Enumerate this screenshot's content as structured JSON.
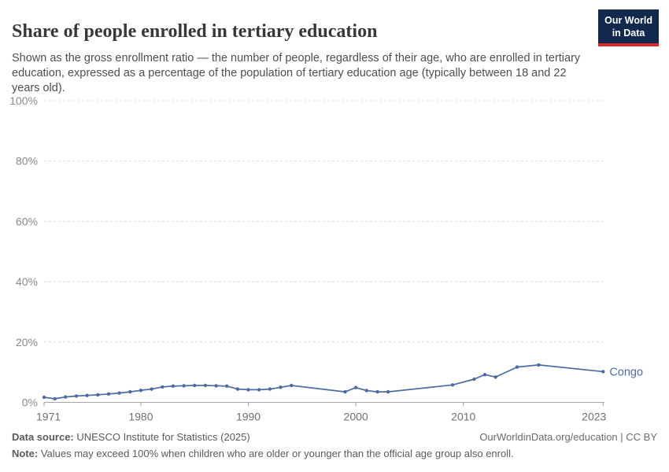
{
  "header": {
    "title": "Share of people enrolled in tertiary education",
    "subtitle": "Shown as the gross enrollment ratio — the number of people, regardless of their age, who are enrolled in tertiary education, expressed as a percentage of the population of tertiary education age (typically between 18 and 22 years old).",
    "logo": {
      "line1": "Our World",
      "line2": "in Data"
    }
  },
  "chart_data": {
    "type": "line",
    "title": "Share of people enrolled in tertiary education",
    "xlabel": "",
    "ylabel": "",
    "grid": "horizontal-dashed",
    "legend_position": "end-of-line-label",
    "xlim": [
      1971,
      2023.5
    ],
    "ylim": [
      0,
      100
    ],
    "x_ticks": [
      1971,
      1980,
      1990,
      2000,
      2010,
      2023
    ],
    "y_tick_values": [
      0,
      20,
      40,
      60,
      80,
      100
    ],
    "y_tick_labels": [
      "0%",
      "20%",
      "40%",
      "60%",
      "80%",
      "100%"
    ],
    "series": [
      {
        "name": "Congo",
        "color": "#4d6ba3",
        "end_label": "Congo",
        "columns": [
          "year",
          "gross_enrollment_ratio_percent"
        ],
        "points": [
          [
            1971,
            1.7
          ],
          [
            1972,
            1.2
          ],
          [
            1973,
            1.8
          ],
          [
            1974,
            2.1
          ],
          [
            1975,
            2.3
          ],
          [
            1976,
            2.5
          ],
          [
            1977,
            2.8
          ],
          [
            1978,
            3.1
          ],
          [
            1979,
            3.5
          ],
          [
            1980,
            4.0
          ],
          [
            1981,
            4.4
          ],
          [
            1982,
            5.1
          ],
          [
            1983,
            5.4
          ],
          [
            1984,
            5.5
          ],
          [
            1985,
            5.6
          ],
          [
            1986,
            5.6
          ],
          [
            1987,
            5.5
          ],
          [
            1988,
            5.4
          ],
          [
            1989,
            4.4
          ],
          [
            1990,
            4.2
          ],
          [
            1991,
            4.2
          ],
          [
            1992,
            4.4
          ],
          [
            1993,
            5.0
          ],
          [
            1994,
            5.6
          ],
          [
            1999,
            3.5
          ],
          [
            2000,
            4.9
          ],
          [
            2001,
            3.9
          ],
          [
            2002,
            3.5
          ],
          [
            2003,
            3.5
          ],
          [
            2009,
            5.8
          ],
          [
            2011,
            7.7
          ],
          [
            2012,
            9.2
          ],
          [
            2013,
            8.4
          ],
          [
            2015,
            11.7
          ],
          [
            2017,
            12.4
          ],
          [
            2023,
            10.2
          ]
        ]
      }
    ]
  },
  "footer": {
    "data_source_label": "Data source:",
    "data_source": " UNESCO Institute for Statistics (2025)",
    "link": "OurWorldinData.org/education | CC BY",
    "note_label": "Note:",
    "note": " Values may exceed 100% when children who are older or younger than the official age group also enroll."
  }
}
